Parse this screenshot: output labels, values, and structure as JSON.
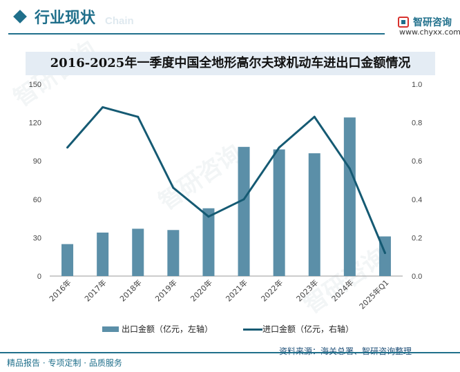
{
  "header": {
    "title": "行业现状",
    "subtitle_en": "Chain"
  },
  "brand": {
    "name": "智研咨询",
    "url": "www.chyxx.com",
    "watermark": "智研咨询"
  },
  "chart_data": {
    "type": "bar",
    "title": "2016-2025年一季度中国全地形高尔夫球机动车进出口金额情况",
    "categories": [
      "2016年",
      "2017年",
      "2018年",
      "2019年",
      "2020年",
      "2021年",
      "2022年",
      "2023年",
      "2024年",
      "2025年Q1"
    ],
    "series": [
      {
        "name": "出口金额（亿元，左轴）",
        "type": "bar",
        "axis": "left",
        "color": "#5b8fa8",
        "values": [
          25,
          34,
          37,
          36,
          53,
          101,
          99,
          96,
          124,
          31
        ]
      },
      {
        "name": "进口金额（亿元，右轴）",
        "type": "line",
        "axis": "right",
        "color": "#155a73",
        "values": [
          0.67,
          0.88,
          0.83,
          0.46,
          0.31,
          0.4,
          0.67,
          0.83,
          0.56,
          0.12
        ]
      }
    ],
    "y_left": {
      "min": 0,
      "max": 150,
      "ticks": [
        "0",
        "30",
        "60",
        "90",
        "120",
        "150"
      ]
    },
    "y_right": {
      "min": 0,
      "max": 1.0,
      "ticks": [
        "0.0",
        "0.2",
        "0.4",
        "0.6",
        "0.8",
        "1.0"
      ]
    },
    "grid": false,
    "legend": "bottom"
  },
  "source": "资料来源：海关总署、智研咨询整理",
  "footer": "精品报告 · 专项定制 · 品质服务"
}
